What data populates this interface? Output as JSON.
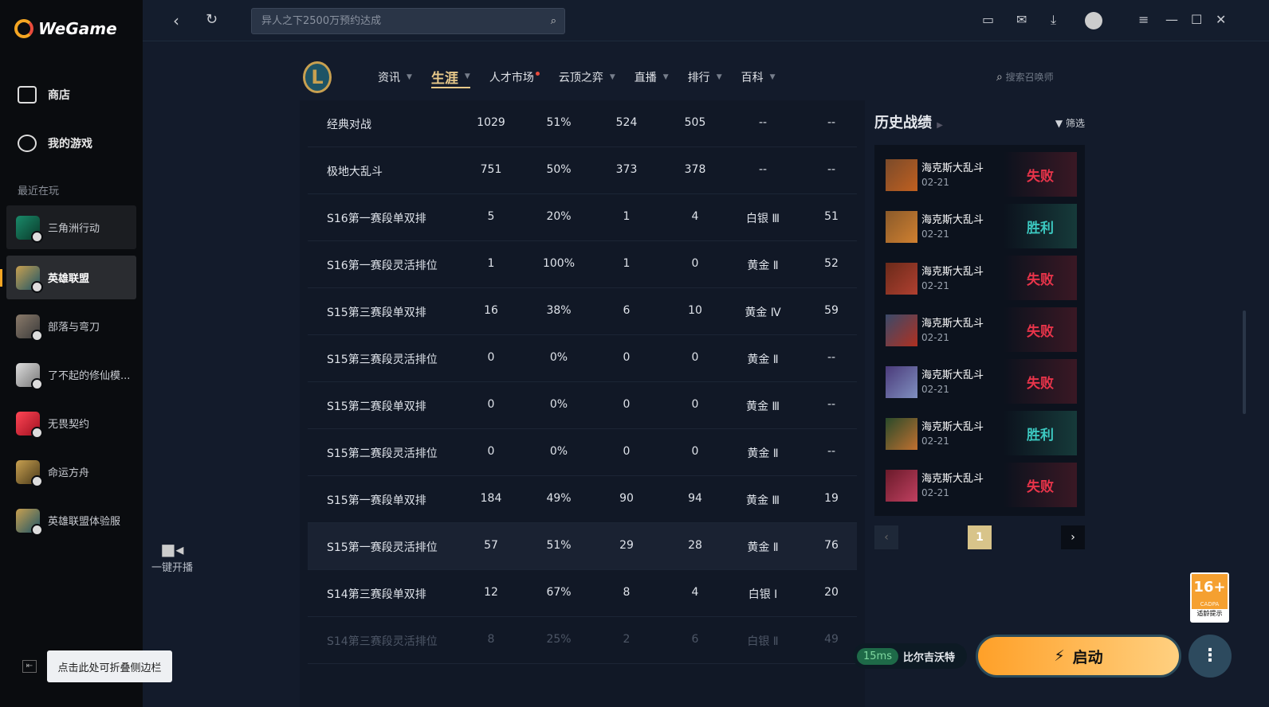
{
  "app": {
    "name": "WeGame"
  },
  "sidebar": {
    "nav": [
      {
        "label": "商店",
        "icon": "bag-icon"
      },
      {
        "label": "我的游戏",
        "icon": "gamepad-icon"
      }
    ],
    "recent_label": "最近在玩",
    "games": [
      {
        "label": "三角洲行动"
      },
      {
        "label": "英雄联盟"
      },
      {
        "label": "部落与弯刀"
      },
      {
        "label": "了不起的修仙模..."
      },
      {
        "label": "无畏契约"
      },
      {
        "label": "命运方舟"
      },
      {
        "label": "英雄联盟体验服"
      }
    ],
    "collapse_tooltip": "点击此处可折叠侧边栏"
  },
  "topbar": {
    "search_placeholder": "异人之下2500万预约达成"
  },
  "game_nav": {
    "items": [
      "资讯",
      "生涯",
      "人才市场",
      "云顶之弈",
      "直播",
      "排行",
      "百科"
    ],
    "active": "生涯",
    "summoner_search_placeholder": "搜索召唤师"
  },
  "live": {
    "label": "一键开播"
  },
  "stats": {
    "rows": [
      [
        "经典对战",
        "1029",
        "51%",
        "524",
        "505",
        "--",
        "--"
      ],
      [
        "极地大乱斗",
        "751",
        "50%",
        "373",
        "378",
        "--",
        "--"
      ],
      [
        "S16第一赛段单双排",
        "5",
        "20%",
        "1",
        "4",
        "白银 Ⅲ",
        "51"
      ],
      [
        "S16第一赛段灵活排位",
        "1",
        "100%",
        "1",
        "0",
        "黄金 Ⅱ",
        "52"
      ],
      [
        "S15第三赛段单双排",
        "16",
        "38%",
        "6",
        "10",
        "黄金 Ⅳ",
        "59"
      ],
      [
        "S15第三赛段灵活排位",
        "0",
        "0%",
        "0",
        "0",
        "黄金 Ⅱ",
        "--"
      ],
      [
        "S15第二赛段单双排",
        "0",
        "0%",
        "0",
        "0",
        "黄金 Ⅲ",
        "--"
      ],
      [
        "S15第二赛段灵活排位",
        "0",
        "0%",
        "0",
        "0",
        "黄金 Ⅱ",
        "--"
      ],
      [
        "S15第一赛段单双排",
        "184",
        "49%",
        "90",
        "94",
        "黄金 Ⅲ",
        "19"
      ],
      [
        "S15第一赛段灵活排位",
        "57",
        "51%",
        "29",
        "28",
        "黄金 Ⅱ",
        "76"
      ],
      [
        "S14第三赛段单双排",
        "12",
        "67%",
        "8",
        "4",
        "白银 Ⅰ",
        "20"
      ],
      [
        "S14第三赛段灵活排位",
        "8",
        "25%",
        "2",
        "6",
        "白银 Ⅱ",
        "49"
      ]
    ]
  },
  "history": {
    "title": "历史战绩",
    "filter": "筛选",
    "page": "1",
    "matches": [
      {
        "mode": "海克斯大乱斗",
        "date": "02-21",
        "result": "失败"
      },
      {
        "mode": "海克斯大乱斗",
        "date": "02-21",
        "result": "胜利"
      },
      {
        "mode": "海克斯大乱斗",
        "date": "02-21",
        "result": "失败"
      },
      {
        "mode": "海克斯大乱斗",
        "date": "02-21",
        "result": "失败"
      },
      {
        "mode": "海克斯大乱斗",
        "date": "02-21",
        "result": "失败"
      },
      {
        "mode": "海克斯大乱斗",
        "date": "02-21",
        "result": "胜利"
      },
      {
        "mode": "海克斯大乱斗",
        "date": "02-21",
        "result": "失败"
      }
    ]
  },
  "launch": {
    "ping": "15ms",
    "server": "比尔吉沃特",
    "label": "启动"
  },
  "age_rating": {
    "label": "16+",
    "org": "CADPA",
    "note": "适龄提示"
  },
  "colors": {
    "accent": "#f5a623",
    "lose": "#e8344a",
    "win": "#3cc8c0",
    "active_tab": "#e8c98a"
  }
}
